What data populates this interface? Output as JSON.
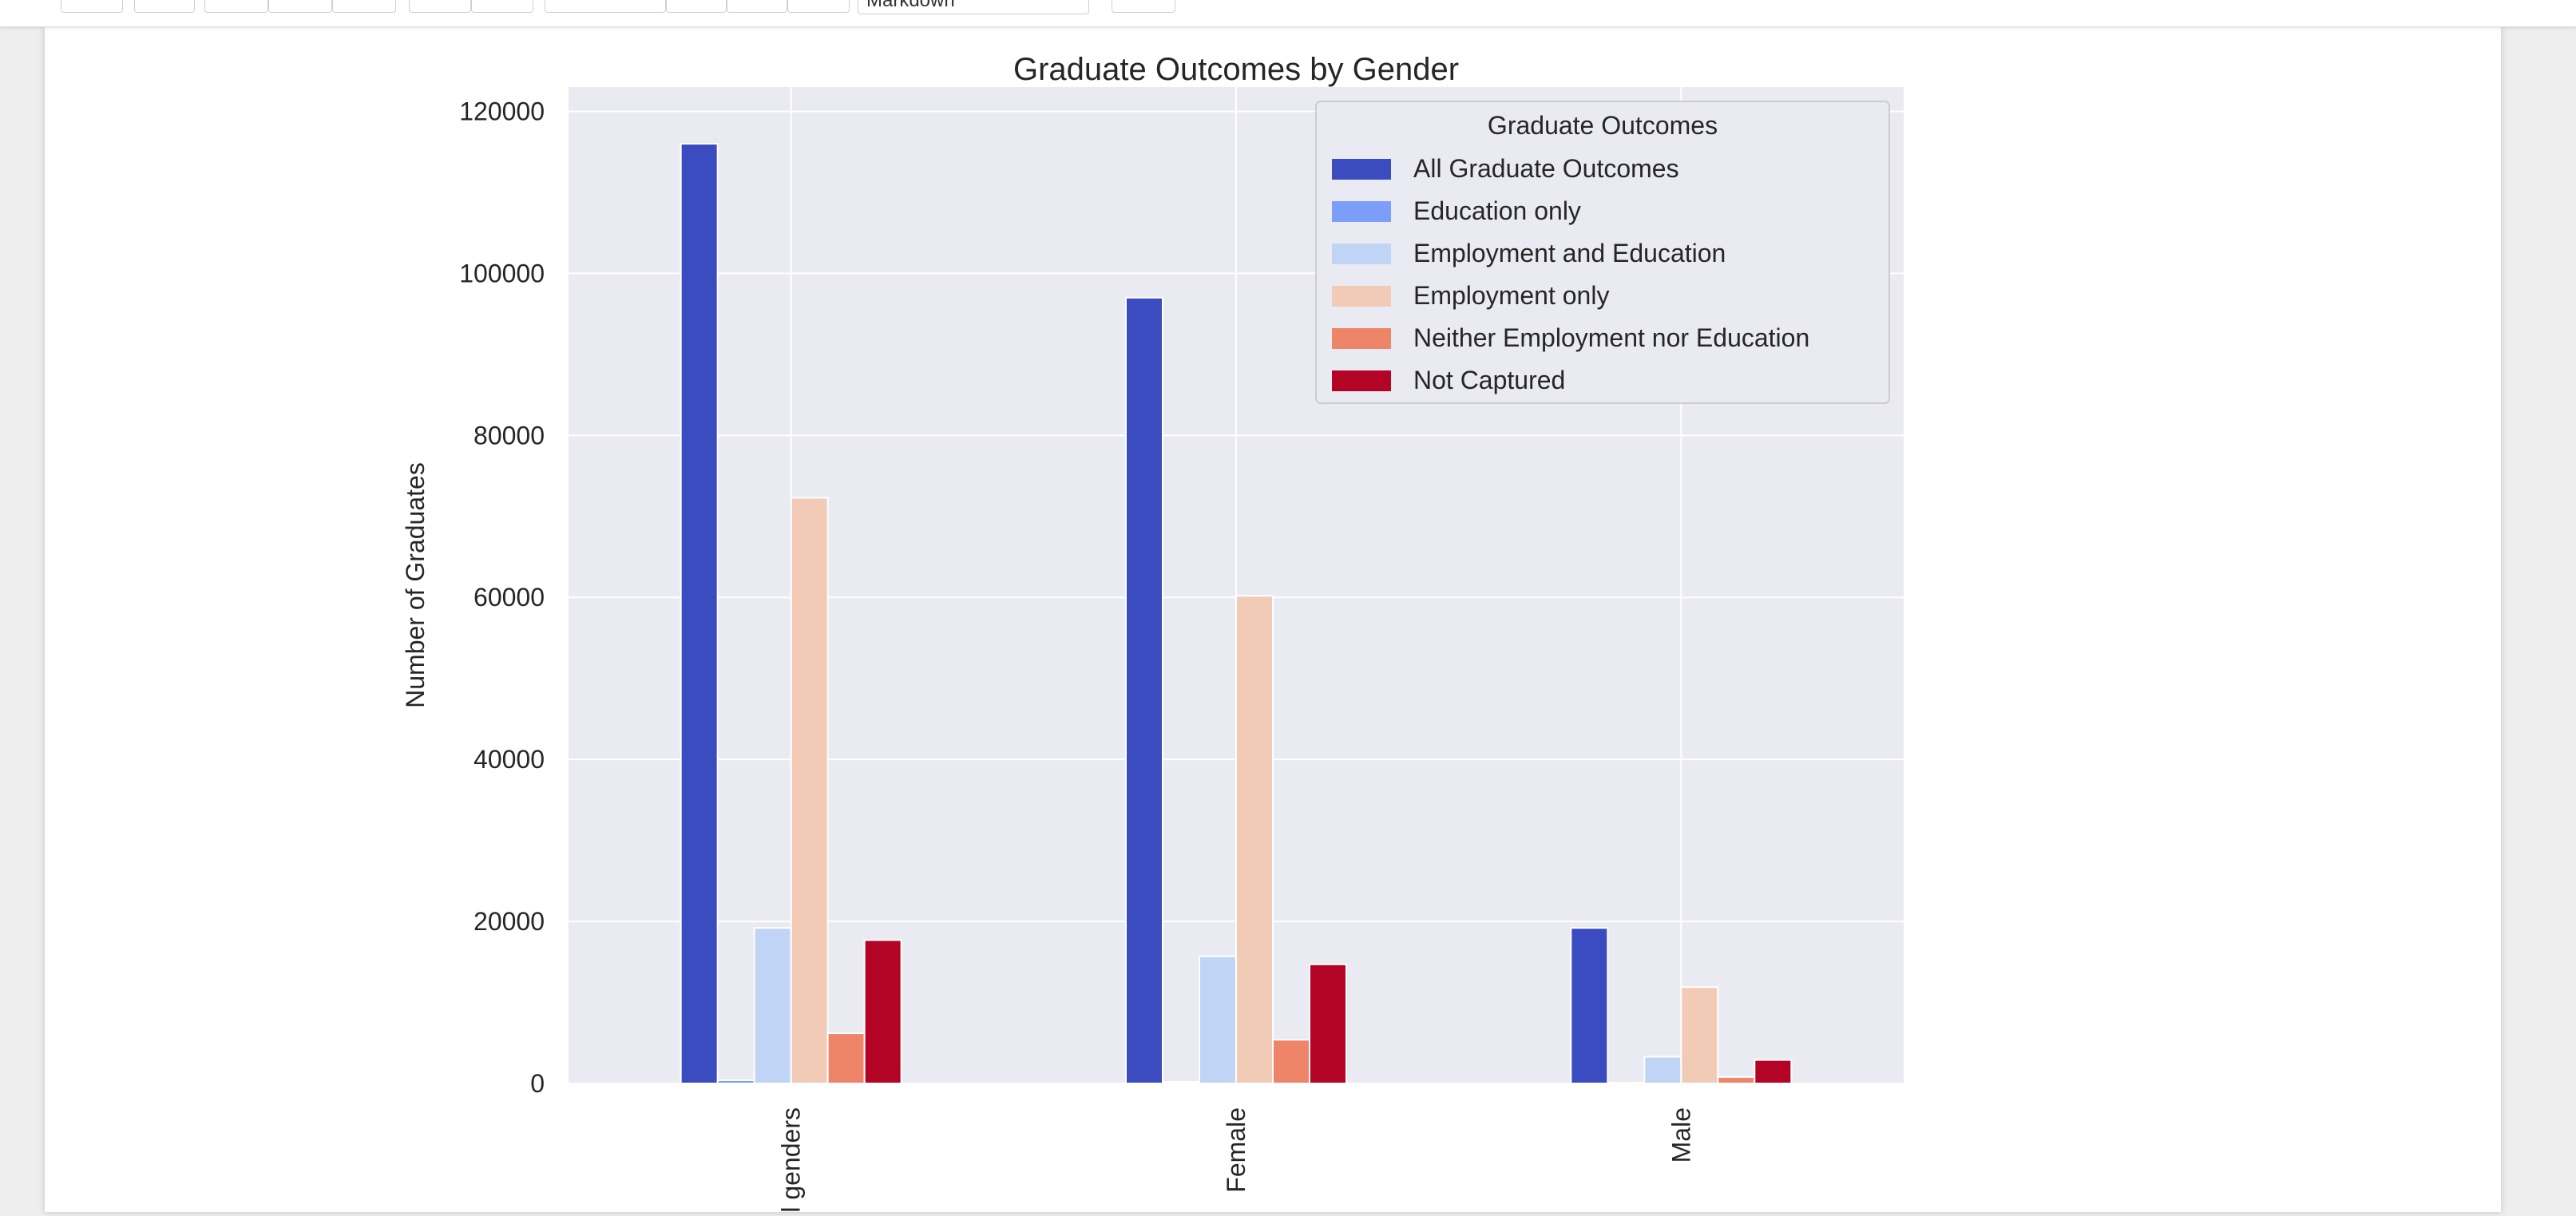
{
  "toolbar": {
    "cell_type_value": "Markdown"
  },
  "chart_data": {
    "type": "bar",
    "title": "Graduate Outcomes by Gender",
    "xlabel": "",
    "ylabel": "Number of Graduates",
    "categories": [
      "All genders",
      "Female",
      "Male"
    ],
    "ylim": [
      0,
      123000
    ],
    "yticks": [
      0,
      20000,
      40000,
      60000,
      80000,
      100000,
      120000
    ],
    "grid": true,
    "legend_title": "Graduate Outcomes",
    "legend_position": "top-right",
    "series": [
      {
        "name": "All Graduate Outcomes",
        "color": "#3b4cc0",
        "values": [
          116000,
          97000,
          19200
        ]
      },
      {
        "name": "Education only",
        "color": "#7b9ff9",
        "values": [
          400,
          200,
          100
        ]
      },
      {
        "name": "Employment and Education",
        "color": "#c0d4f5",
        "values": [
          19200,
          15700,
          3300
        ]
      },
      {
        "name": "Employment only",
        "color": "#f2cbb7",
        "values": [
          72300,
          60200,
          11900
        ]
      },
      {
        "name": "Neither Employment nor Education",
        "color": "#ee8468",
        "values": [
          6200,
          5400,
          800
        ]
      },
      {
        "name": "Not Captured",
        "color": "#b40426",
        "values": [
          17700,
          14700,
          2900
        ]
      }
    ]
  }
}
